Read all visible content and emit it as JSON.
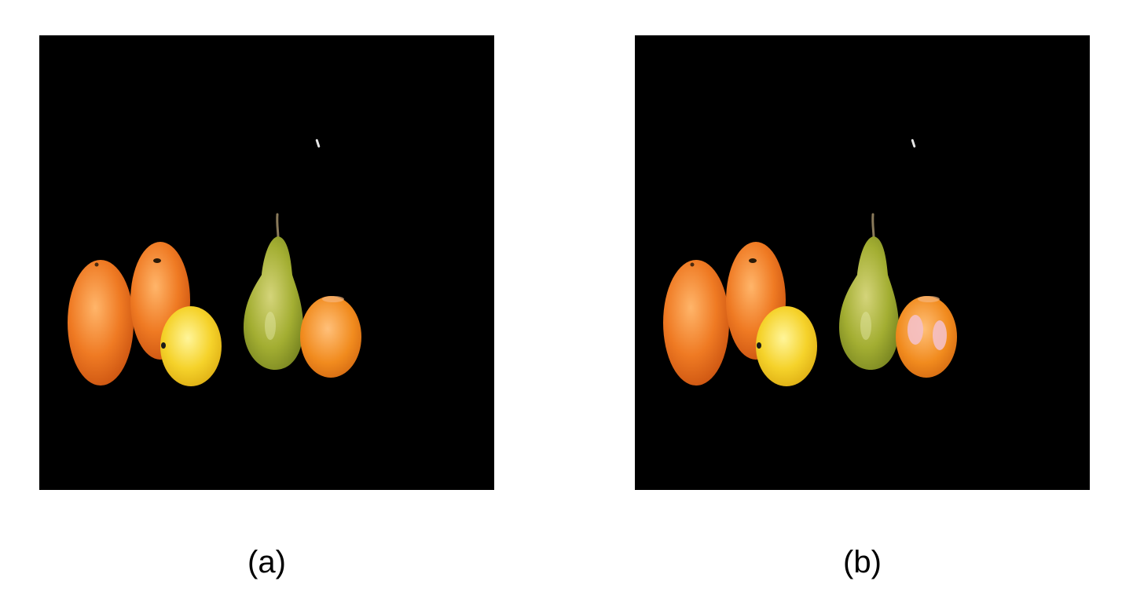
{
  "figure": {
    "panels": [
      {
        "id": "a",
        "caption": "(a)",
        "highlight_on_mandarin": false
      },
      {
        "id": "b",
        "caption": "(b)",
        "highlight_on_mandarin": true
      }
    ],
    "colors": {
      "background": "#000000",
      "orange_fruit": "#ef7a23",
      "lemon": "#f5d22a",
      "pear": "#a3ae32",
      "mandarin": "#f18b1e",
      "highlight": "#f4c0c6"
    }
  }
}
